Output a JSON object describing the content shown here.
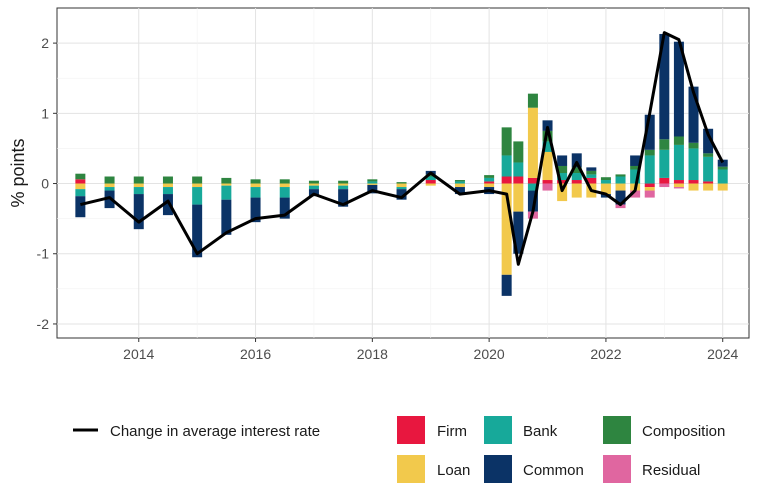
{
  "chart_data": {
    "type": "bar",
    "subtype": "stacked bar with overlaid line",
    "ylabel": "% points",
    "xlabel": "",
    "xlim": [
      2012.6,
      2024.45
    ],
    "ylim": [
      -2.2,
      2.5
    ],
    "x_ticks": [
      2014,
      2016,
      2018,
      2020,
      2022,
      2024
    ],
    "y_ticks": [
      -2,
      -1,
      0,
      1,
      2
    ],
    "grid": true,
    "legend_position": "bottom",
    "line": {
      "name": "Change in average interest rate",
      "color": "#000000",
      "x": [
        2013.0,
        2013.5,
        2014.0,
        2014.5,
        2015.0,
        2015.5,
        2016.0,
        2016.5,
        2017.0,
        2017.5,
        2018.0,
        2018.5,
        2019.0,
        2019.5,
        2020.0,
        2020.3,
        2020.5,
        2020.75,
        2021.0,
        2021.25,
        2021.5,
        2021.75,
        2022.0,
        2022.25,
        2022.5,
        2022.75,
        2023.0,
        2023.25,
        2023.5,
        2023.75,
        2024.0
      ],
      "y": [
        -0.3,
        -0.2,
        -0.55,
        -0.25,
        -1.0,
        -0.7,
        -0.5,
        -0.45,
        -0.15,
        -0.3,
        -0.1,
        -0.2,
        0.15,
        -0.15,
        -0.1,
        -0.15,
        -1.15,
        -0.4,
        0.8,
        -0.1,
        0.3,
        -0.1,
        -0.15,
        -0.3,
        -0.1,
        1.0,
        2.15,
        2.05,
        1.3,
        0.7,
        0.3
      ]
    },
    "bars": {
      "x": [
        2013.0,
        2013.5,
        2014.0,
        2014.5,
        2015.0,
        2015.5,
        2016.0,
        2016.5,
        2017.0,
        2017.5,
        2018.0,
        2018.5,
        2019.0,
        2019.5,
        2020.0,
        2020.3,
        2020.5,
        2020.75,
        2021.0,
        2021.25,
        2021.5,
        2021.75,
        2022.0,
        2022.25,
        2022.5,
        2022.75,
        2023.0,
        2023.25,
        2023.5,
        2023.75,
        2024.0
      ],
      "series": [
        {
          "name": "Firm",
          "color": "#e8173f",
          "values": [
            0.06,
            0.0,
            0.0,
            0.0,
            0.0,
            0.0,
            0.0,
            0.0,
            0.0,
            0.0,
            0.0,
            0.0,
            0.05,
            0.0,
            0.03,
            0.1,
            0.1,
            0.08,
            0.05,
            0.05,
            0.05,
            0.08,
            0.0,
            0.0,
            0.0,
            -0.05,
            0.08,
            0.05,
            0.05,
            0.03,
            0.0
          ]
        },
        {
          "name": "Loan",
          "color": "#f2c94c",
          "values": [
            -0.08,
            -0.05,
            -0.05,
            -0.05,
            -0.05,
            -0.03,
            -0.05,
            -0.05,
            -0.03,
            -0.03,
            -0.02,
            -0.05,
            -0.03,
            -0.05,
            -0.05,
            -1.3,
            -0.4,
            1.0,
            0.4,
            -0.25,
            -0.2,
            -0.2,
            -0.15,
            -0.1,
            -0.1,
            -0.05,
            0.0,
            -0.05,
            -0.1,
            -0.1,
            -0.1
          ]
        },
        {
          "name": "Bank",
          "color": "#17a99a",
          "values": [
            -0.1,
            -0.05,
            -0.1,
            -0.1,
            -0.25,
            -0.2,
            -0.15,
            -0.15,
            -0.05,
            -0.05,
            0.03,
            -0.03,
            0.05,
            0.03,
            0.05,
            0.3,
            0.2,
            -0.1,
            0.15,
            0.1,
            0.1,
            0.05,
            0.05,
            0.1,
            0.2,
            0.4,
            0.4,
            0.5,
            0.45,
            0.35,
            0.2
          ]
        },
        {
          "name": "Composition",
          "color": "#2e8540",
          "values": [
            0.08,
            0.1,
            0.1,
            0.1,
            0.1,
            0.08,
            0.06,
            0.06,
            0.04,
            0.04,
            0.03,
            0.02,
            0.03,
            0.02,
            0.04,
            0.4,
            0.3,
            0.2,
            0.15,
            0.1,
            0.08,
            0.05,
            0.04,
            0.03,
            0.05,
            0.08,
            0.15,
            0.12,
            0.08,
            0.05,
            0.04
          ]
        },
        {
          "name": "Common",
          "color": "#0b3366",
          "values": [
            -0.3,
            -0.25,
            -0.5,
            -0.3,
            -0.75,
            -0.5,
            -0.35,
            -0.3,
            -0.1,
            -0.25,
            -0.12,
            -0.15,
            0.05,
            -0.1,
            -0.1,
            -0.3,
            -0.6,
            -0.3,
            0.15,
            0.15,
            0.2,
            0.05,
            -0.05,
            -0.2,
            0.15,
            0.5,
            1.5,
            1.35,
            0.8,
            0.35,
            0.1
          ]
        },
        {
          "name": "Residual",
          "color": "#e066a0",
          "values": [
            0.0,
            0.0,
            0.0,
            0.0,
            0.0,
            0.0,
            0.0,
            0.0,
            0.0,
            0.0,
            0.0,
            0.0,
            0.0,
            0.0,
            0.0,
            0.0,
            0.0,
            -0.1,
            -0.1,
            0.0,
            0.0,
            0.0,
            0.0,
            -0.05,
            -0.1,
            -0.1,
            -0.05,
            -0.02,
            0.0,
            0.0,
            0.0
          ]
        }
      ]
    }
  }
}
